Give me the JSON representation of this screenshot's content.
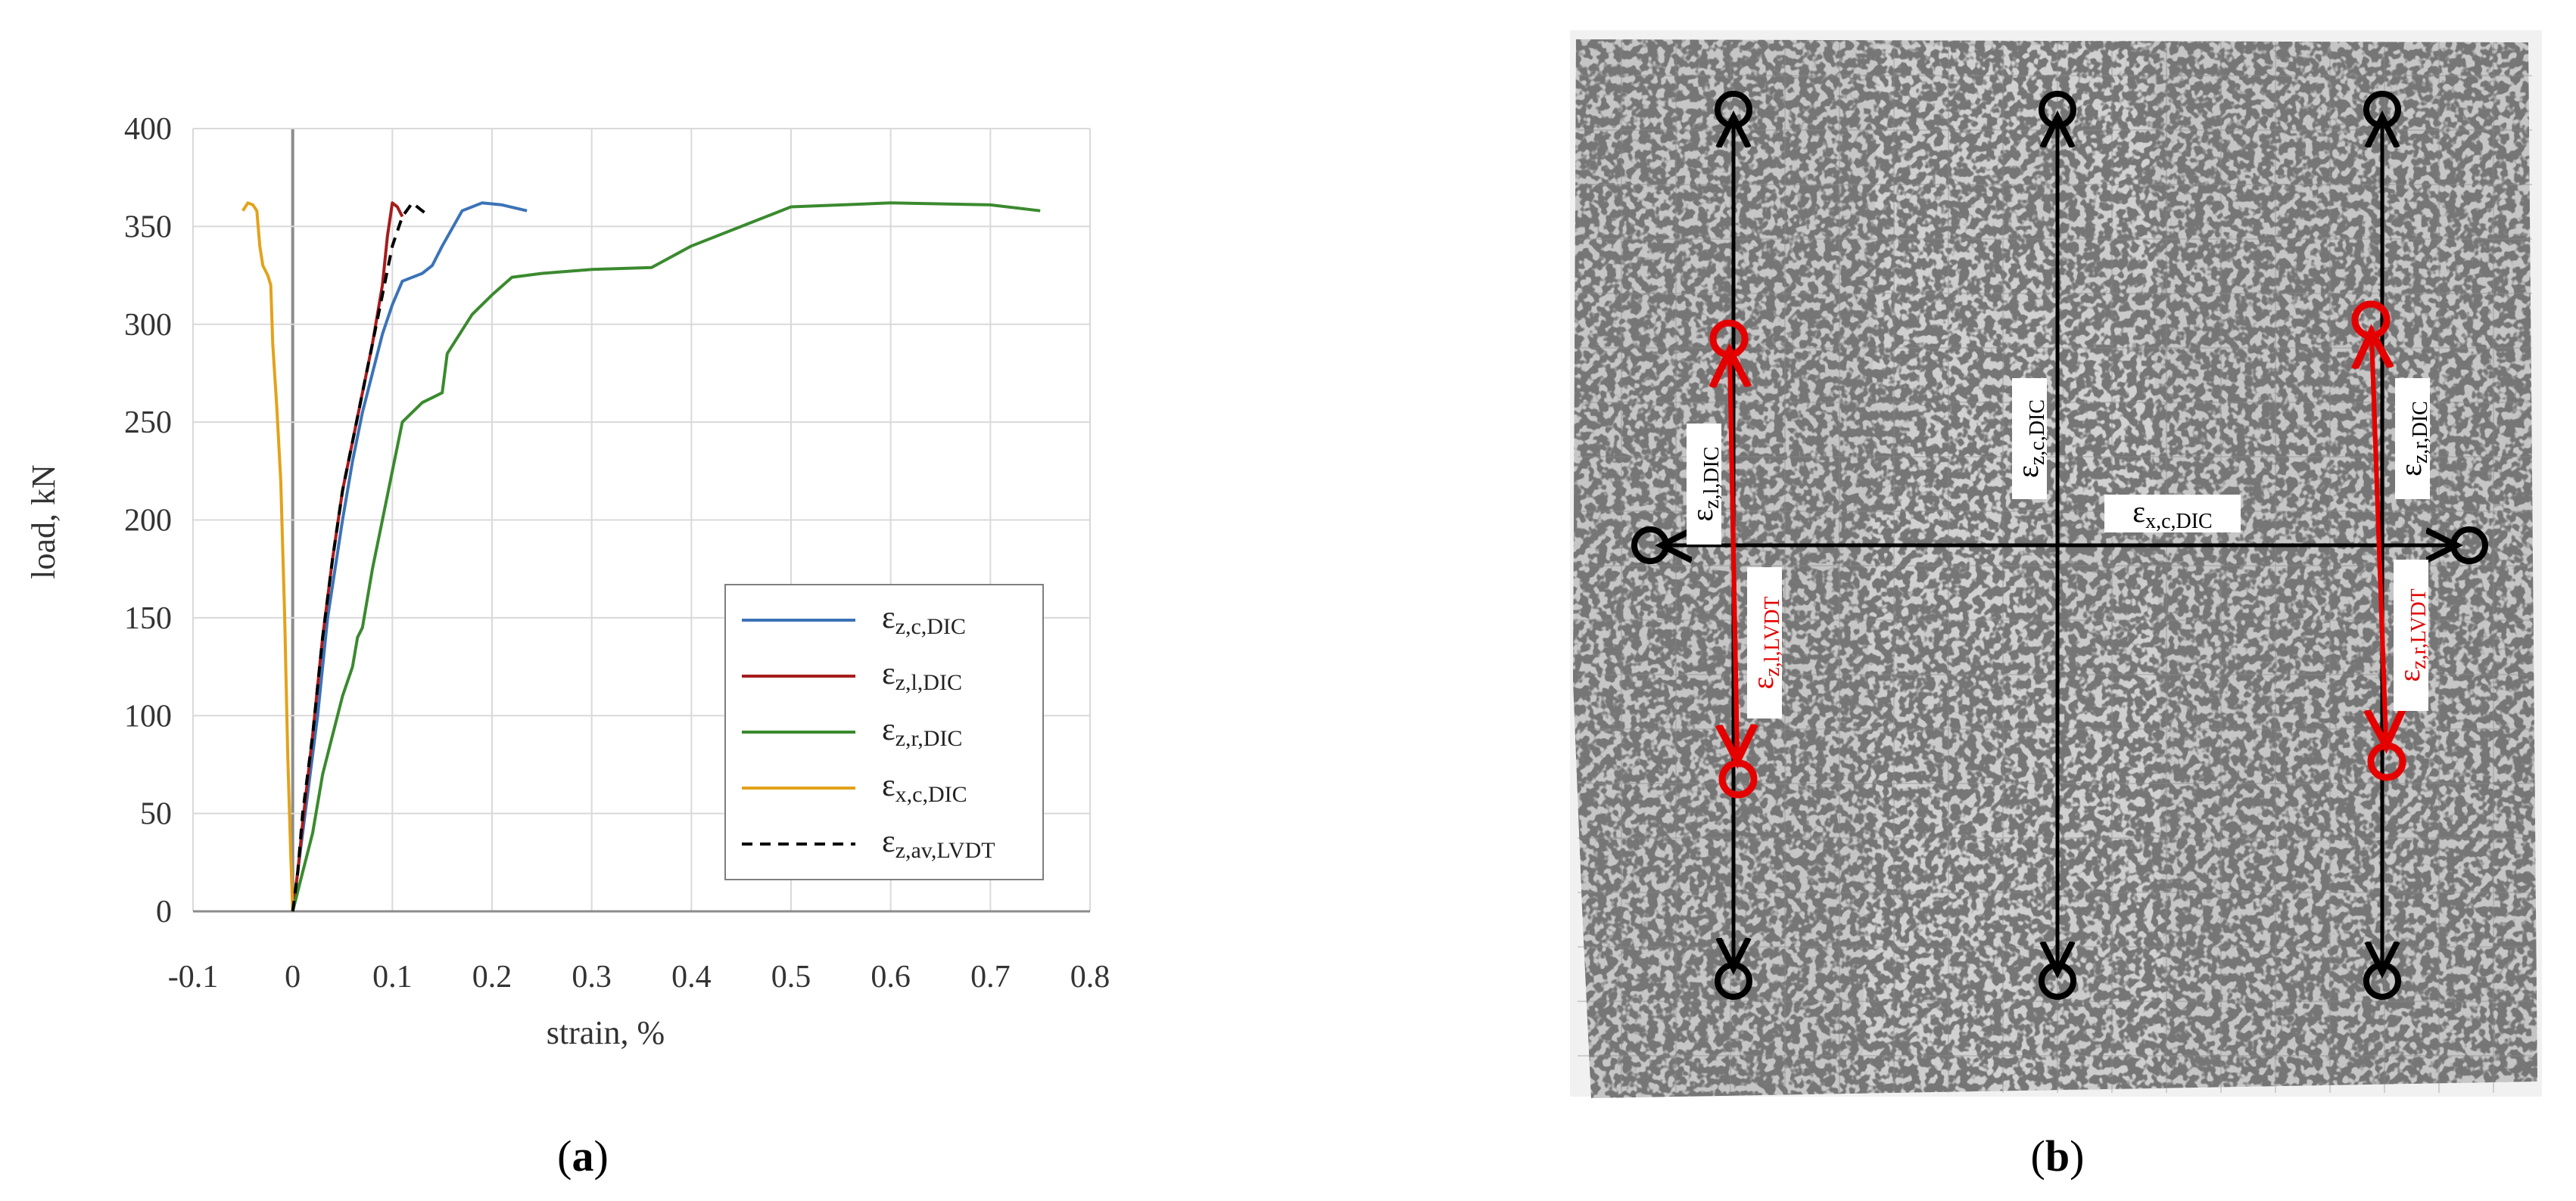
{
  "chart_data": {
    "type": "line",
    "xlabel": "strain, %",
    "ylabel": "load, kN",
    "xlim": [
      -0.1,
      0.8
    ],
    "ylim": [
      0,
      400
    ],
    "x_ticks": [
      -0.1,
      0,
      0.1,
      0.2,
      0.3,
      0.4,
      0.5,
      0.6,
      0.7,
      0.8
    ],
    "x_tick_labels": [
      "-0.1",
      "0",
      "0.1",
      "0.2",
      "0.3",
      "0.4",
      "0.5",
      "0.6",
      "0.7",
      "0.8"
    ],
    "y_ticks": [
      0,
      50,
      100,
      150,
      200,
      250,
      300,
      350,
      400
    ],
    "y_tick_labels": [
      "0",
      "50",
      "100",
      "150",
      "200",
      "250",
      "300",
      "350",
      "400"
    ],
    "grid": true,
    "legend_position": "lower-right",
    "series": [
      {
        "name": "ε_z,c,DIC",
        "color": "#3b73b7",
        "dash": "solid",
        "points": [
          [
            0,
            0
          ],
          [
            0.005,
            20
          ],
          [
            0.01,
            40
          ],
          [
            0.015,
            60
          ],
          [
            0.025,
            100
          ],
          [
            0.035,
            150
          ],
          [
            0.05,
            200
          ],
          [
            0.06,
            230
          ],
          [
            0.07,
            255
          ],
          [
            0.08,
            275
          ],
          [
            0.09,
            295
          ],
          [
            0.1,
            310
          ],
          [
            0.11,
            322
          ],
          [
            0.13,
            326
          ],
          [
            0.14,
            330
          ],
          [
            0.15,
            340
          ],
          [
            0.17,
            358
          ],
          [
            0.19,
            362
          ],
          [
            0.21,
            361
          ],
          [
            0.235,
            358
          ]
        ]
      },
      {
        "name": "ε_z,l,DIC",
        "color": "#a61c1c",
        "dash": "solid",
        "points": [
          [
            0,
            0
          ],
          [
            0.005,
            20
          ],
          [
            0.01,
            45
          ],
          [
            0.02,
            90
          ],
          [
            0.03,
            140
          ],
          [
            0.04,
            180
          ],
          [
            0.05,
            215
          ],
          [
            0.06,
            240
          ],
          [
            0.07,
            265
          ],
          [
            0.08,
            290
          ],
          [
            0.09,
            320
          ],
          [
            0.095,
            345
          ],
          [
            0.1,
            362
          ],
          [
            0.105,
            360
          ],
          [
            0.11,
            355
          ]
        ]
      },
      {
        "name": "ε_z,r,DIC",
        "color": "#3a8a2e",
        "dash": "solid",
        "points": [
          [
            0,
            0
          ],
          [
            0.01,
            20
          ],
          [
            0.02,
            40
          ],
          [
            0.025,
            55
          ],
          [
            0.03,
            70
          ],
          [
            0.04,
            90
          ],
          [
            0.05,
            110
          ],
          [
            0.06,
            125
          ],
          [
            0.065,
            140
          ],
          [
            0.07,
            145
          ],
          [
            0.08,
            175
          ],
          [
            0.09,
            200
          ],
          [
            0.1,
            225
          ],
          [
            0.11,
            250
          ],
          [
            0.13,
            260
          ],
          [
            0.15,
            265
          ],
          [
            0.155,
            285
          ],
          [
            0.18,
            305
          ],
          [
            0.2,
            315
          ],
          [
            0.22,
            324
          ],
          [
            0.25,
            326
          ],
          [
            0.3,
            328
          ],
          [
            0.36,
            329
          ],
          [
            0.4,
            340
          ],
          [
            0.45,
            350
          ],
          [
            0.5,
            360
          ],
          [
            0.6,
            362
          ],
          [
            0.7,
            361
          ],
          [
            0.75,
            358
          ]
        ]
      },
      {
        "name": "ε_x,c,DIC",
        "color": "#e3a21a",
        "dash": "solid",
        "points": [
          [
            0,
            0
          ],
          [
            -0.002,
            30
          ],
          [
            -0.005,
            80
          ],
          [
            -0.008,
            150
          ],
          [
            -0.012,
            220
          ],
          [
            -0.016,
            258
          ],
          [
            -0.02,
            290
          ],
          [
            -0.022,
            320
          ],
          [
            -0.025,
            325
          ],
          [
            -0.03,
            330
          ],
          [
            -0.033,
            340
          ],
          [
            -0.036,
            358
          ],
          [
            -0.04,
            361
          ],
          [
            -0.045,
            362
          ],
          [
            -0.05,
            358
          ]
        ]
      },
      {
        "name": "ε_z,av,LVDT",
        "color": "#000000",
        "dash": "dashed",
        "points": [
          [
            0,
            0
          ],
          [
            0.005,
            20
          ],
          [
            0.01,
            50
          ],
          [
            0.02,
            90
          ],
          [
            0.03,
            140
          ],
          [
            0.04,
            180
          ],
          [
            0.05,
            215
          ],
          [
            0.06,
            240
          ],
          [
            0.07,
            265
          ],
          [
            0.08,
            290
          ],
          [
            0.09,
            315
          ],
          [
            0.1,
            340
          ],
          [
            0.11,
            355
          ],
          [
            0.12,
            362
          ],
          [
            0.13,
            358
          ],
          [
            0.135,
            356
          ]
        ]
      }
    ],
    "legend_labels": [
      {
        "base": "ε",
        "sub": "z,c,DIC"
      },
      {
        "base": "ε",
        "sub": "z,l,DIC"
      },
      {
        "base": "ε",
        "sub": "z,r,DIC"
      },
      {
        "base": "ε",
        "sub": "x,c,DIC"
      },
      {
        "base": "ε",
        "sub": "z,av,LVDT"
      }
    ]
  },
  "panel_a_label": {
    "open": "(",
    "letter": "a",
    "close": ")"
  },
  "panel_b_label": {
    "open": "(",
    "letter": "b",
    "close": ")"
  },
  "photo_annotations": {
    "left_dic": {
      "base": "ε",
      "sub": "z,l,DIC"
    },
    "center_dic": {
      "base": "ε",
      "sub": "z,c,DIC"
    },
    "right_dic": {
      "base": "ε",
      "sub": "z,r,DIC"
    },
    "horizontal_dic": {
      "base": "ε",
      "sub": "x,c,DIC"
    },
    "left_lvdt": {
      "base": "ε",
      "sub": "z,l,LVDT"
    },
    "right_lvdt": {
      "base": "ε",
      "sub": "z,r,LVDT"
    }
  },
  "colors": {
    "grid": "#d9d9d9",
    "axis": "#8c8c8c",
    "photo_bg": "#bdbdbd",
    "annotation_black": "#000000",
    "annotation_red": "#e50000"
  }
}
